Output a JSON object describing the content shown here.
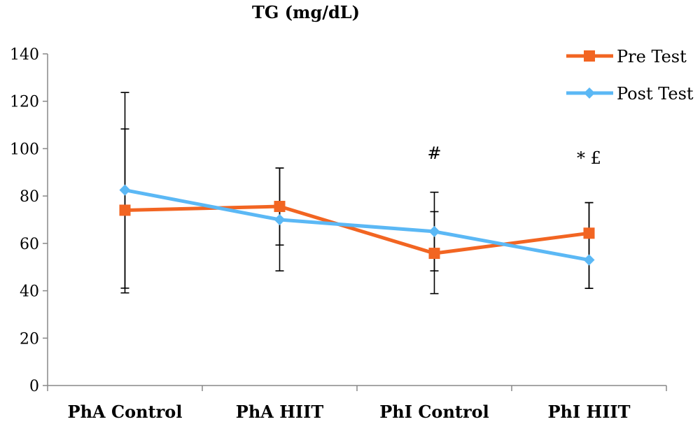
{
  "chart_data": {
    "type": "line",
    "title": "TG (mg/dL)",
    "xlabel": "",
    "ylabel": "",
    "categories": [
      "PhA Control",
      "PhA HIIT",
      "PhI Control",
      "PhI HIIT"
    ],
    "ylim": [
      0,
      140
    ],
    "yticks": [
      0,
      20,
      40,
      60,
      80,
      100,
      120,
      140
    ],
    "grid": false,
    "legend_position": "top-right",
    "series": [
      {
        "name": "Pre Test",
        "color": "#F26522",
        "marker": "square",
        "values": [
          74,
          75.6,
          55.8,
          64.3
        ],
        "error_low": [
          41.1,
          59.3,
          48.4,
          41
        ],
        "error_high": [
          108.3,
          91.8,
          73.4,
          77.2
        ]
      },
      {
        "name": "Post Test",
        "color": "#5BB8F5",
        "marker": "diamond",
        "values": [
          82.5,
          70,
          65,
          53
        ],
        "error_low": [
          39.1,
          48.4,
          38.8,
          41
        ],
        "error_high": [
          123.7,
          91.8,
          81.6,
          77.2
        ]
      }
    ],
    "annotations": [
      {
        "text": "#",
        "category": "PhI Control",
        "y": 98
      },
      {
        "text": "* £",
        "category": "PhI HIIT",
        "y": 96
      }
    ]
  }
}
